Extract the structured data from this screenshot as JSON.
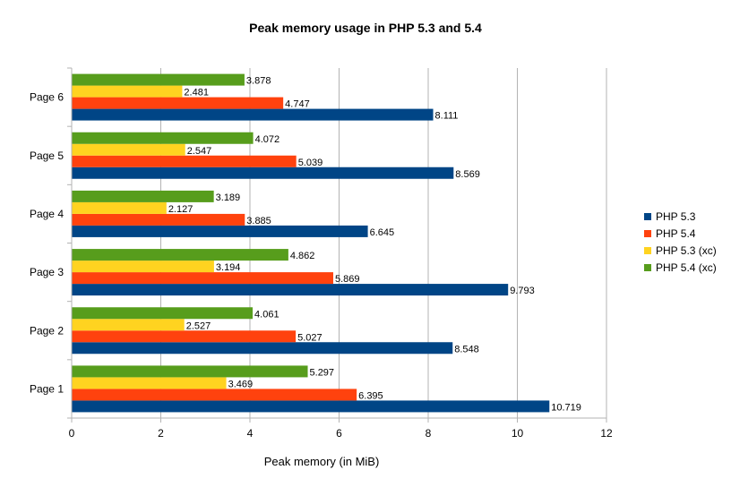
{
  "chart_data": {
    "type": "bar",
    "orientation": "horizontal",
    "title": "Peak memory usage in PHP 5.3 and 5.4",
    "xlabel": "Peak memory (in MiB)",
    "ylabel": "",
    "xlim": [
      0,
      12
    ],
    "xticks": [
      0,
      2,
      4,
      6,
      8,
      10,
      12
    ],
    "grid": true,
    "legend_position": "right",
    "categories": [
      "Page 1",
      "Page 2",
      "Page 3",
      "Page 4",
      "Page 5",
      "Page 6"
    ],
    "series": [
      {
        "name": "PHP 5.3",
        "color": "#004586",
        "values": [
          10.719,
          8.548,
          9.793,
          6.645,
          8.569,
          8.111
        ],
        "labels": [
          "10.719",
          "8.548",
          "9.793",
          "6.645",
          "8.569",
          "8.111"
        ]
      },
      {
        "name": "PHP 5.4",
        "color": "#ff420e",
        "values": [
          6.395,
          5.027,
          5.869,
          3.885,
          5.039,
          4.747
        ],
        "labels": [
          "6.395",
          "5.027",
          "5.869",
          "3.885",
          "5.039",
          "4.747"
        ]
      },
      {
        "name": "PHP 5.3 (xc)",
        "color": "#ffd320",
        "values": [
          3.469,
          2.527,
          3.194,
          2.127,
          2.547,
          2.481
        ],
        "labels": [
          "3.469",
          "2.527",
          "3.194",
          "2.127",
          "2.547",
          "2.481"
        ]
      },
      {
        "name": "PHP 5.4 (xc)",
        "color": "#579d1c",
        "values": [
          5.297,
          4.061,
          4.862,
          3.189,
          4.072,
          3.878
        ],
        "labels": [
          "5.297",
          "4.061",
          "4.862",
          "3.189",
          "4.072",
          "3.878"
        ]
      }
    ]
  }
}
